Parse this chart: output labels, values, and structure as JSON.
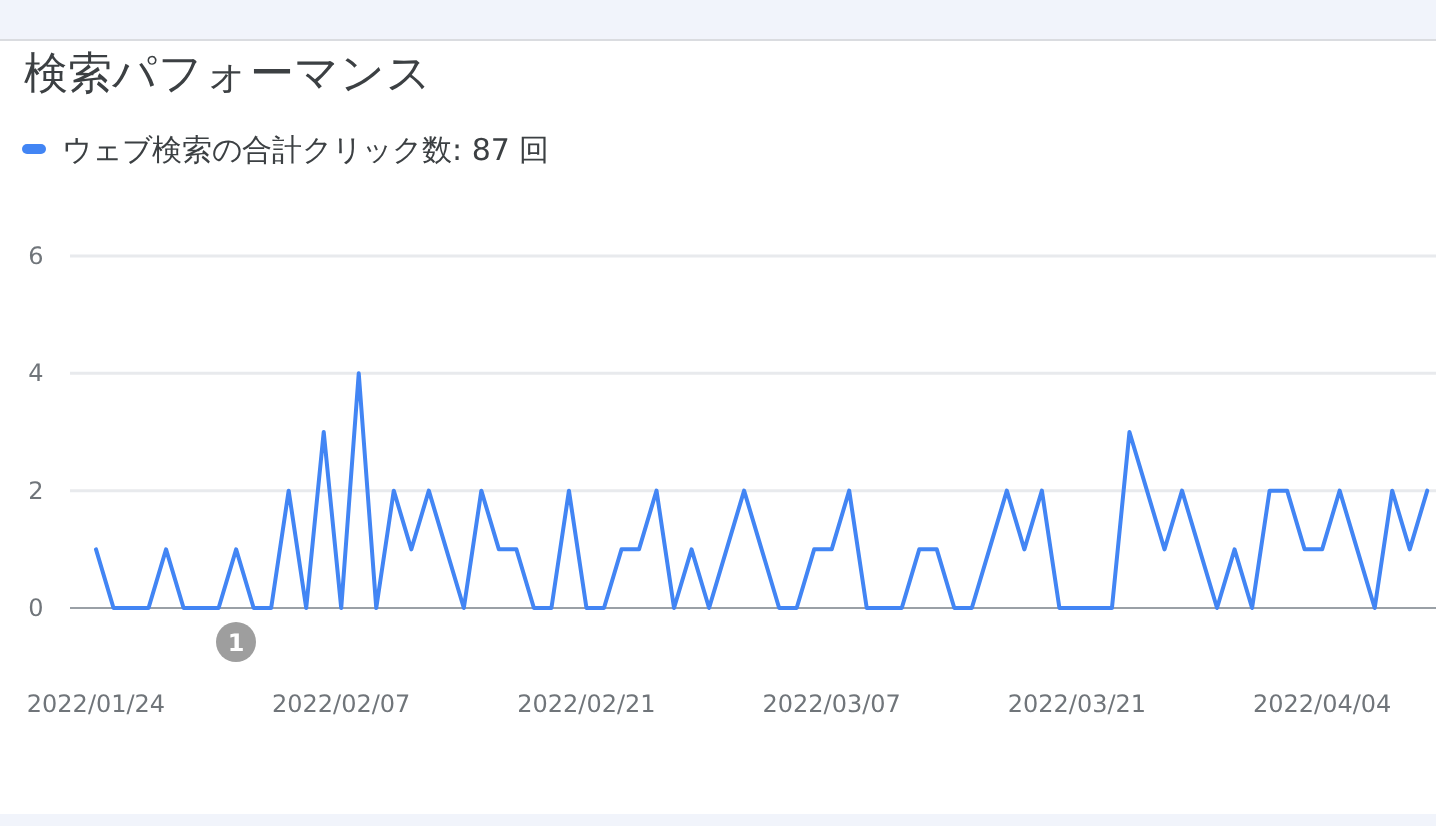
{
  "chart_data": {
    "type": "line",
    "title": "検索パフォーマンス",
    "series": [
      {
        "name": "ウェブ検索の合計クリック数: 87 回",
        "color": "#4285f4",
        "values": [
          1,
          0,
          0,
          0,
          1,
          0,
          0,
          0,
          1,
          0,
          0,
          2,
          0,
          3,
          0,
          4,
          0,
          2,
          1,
          2,
          1,
          0,
          2,
          1,
          1,
          0,
          0,
          2,
          0,
          0,
          1,
          1,
          2,
          0,
          1,
          0,
          1,
          2,
          1,
          0,
          0,
          1,
          1,
          2,
          0,
          0,
          0,
          1,
          1,
          0,
          0,
          1,
          2,
          1,
          2,
          0,
          0,
          0,
          0,
          3,
          2,
          1,
          2,
          1,
          0,
          1,
          0,
          2,
          2,
          1,
          1,
          2,
          1,
          0,
          2,
          1,
          2
        ]
      }
    ],
    "x": [
      "2022-01-24",
      "2022-01-25",
      "2022-01-26",
      "2022-01-27",
      "2022-01-28",
      "2022-01-29",
      "2022-01-30",
      "2022-01-31",
      "2022-02-01",
      "2022-02-02",
      "2022-02-03",
      "2022-02-04",
      "2022-02-05",
      "2022-02-06",
      "2022-02-07",
      "2022-02-08",
      "2022-02-09",
      "2022-02-10",
      "2022-02-11",
      "2022-02-12",
      "2022-02-13",
      "2022-02-14",
      "2022-02-15",
      "2022-02-16",
      "2022-02-17",
      "2022-02-18",
      "2022-02-19",
      "2022-02-20",
      "2022-02-21",
      "2022-02-22",
      "2022-02-23",
      "2022-02-24",
      "2022-02-25",
      "2022-02-26",
      "2022-02-27",
      "2022-02-28",
      "2022-03-01",
      "2022-03-02",
      "2022-03-03",
      "2022-03-04",
      "2022-03-05",
      "2022-03-06",
      "2022-03-07",
      "2022-03-08",
      "2022-03-09",
      "2022-03-10",
      "2022-03-11",
      "2022-03-12",
      "2022-03-13",
      "2022-03-14",
      "2022-03-15",
      "2022-03-16",
      "2022-03-17",
      "2022-03-18",
      "2022-03-19",
      "2022-03-20",
      "2022-03-21",
      "2022-03-22",
      "2022-03-23",
      "2022-03-24",
      "2022-03-25",
      "2022-03-26",
      "2022-03-27",
      "2022-03-28",
      "2022-03-29",
      "2022-03-30",
      "2022-03-31",
      "2022-04-01",
      "2022-04-02",
      "2022-04-03",
      "2022-04-04",
      "2022-04-05",
      "2022-04-06",
      "2022-04-07",
      "2022-04-08",
      "2022-04-09",
      "2022-04-10"
    ],
    "xlim": [
      "2022-01-24",
      "2022-04-10T12:00"
    ],
    "xticks": [
      {
        "value": "2022-01-24",
        "label": "2022/01/24"
      },
      {
        "value": "2022-02-07",
        "label": "2022/02/07"
      },
      {
        "value": "2022-02-21",
        "label": "2022/02/21"
      },
      {
        "value": "2022-03-07",
        "label": "2022/03/07"
      },
      {
        "value": "2022-03-21",
        "label": "2022/03/21"
      },
      {
        "value": "2022-04-04",
        "label": "2022/04/04"
      }
    ],
    "ylim": [
      0,
      6
    ],
    "yticks": [
      0,
      2,
      4,
      6
    ],
    "grid": "y",
    "legend": "top left",
    "annotations": [
      "1"
    ]
  }
}
